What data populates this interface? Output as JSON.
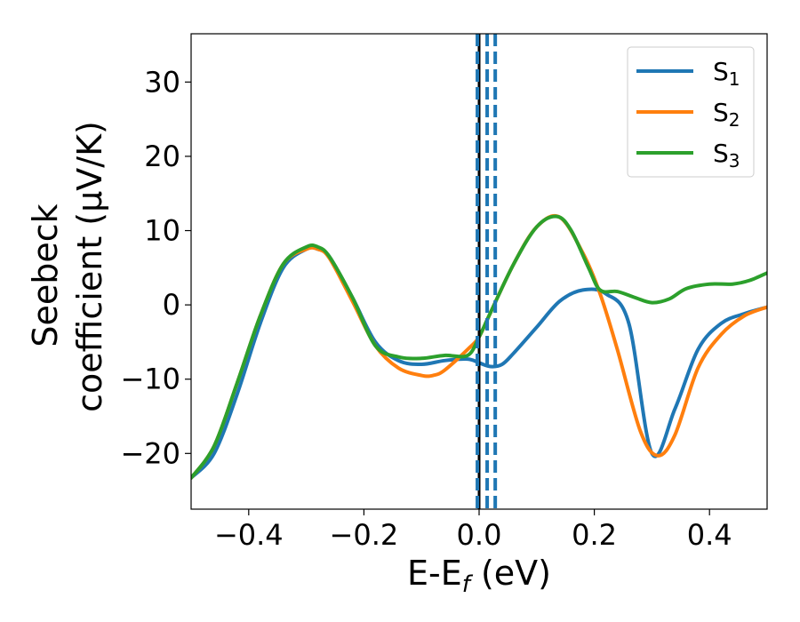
{
  "chart_data": {
    "type": "line",
    "title": "",
    "xlabel_main": "E-E",
    "xlabel_sub": "f",
    "xlabel_unit": " (eV)",
    "ylabel_line1": "Seebeck",
    "ylabel_line2": "coefficient  (μV/K)",
    "xlim": [
      -0.5,
      0.5
    ],
    "ylim": [
      -27.5,
      36.5
    ],
    "xticks": [
      -0.4,
      -0.2,
      0.0,
      0.2,
      0.4
    ],
    "xtick_labels": [
      "−0.4",
      "−0.2",
      "0.0",
      "0.2",
      "0.4"
    ],
    "yticks": [
      -20,
      -10,
      0,
      10,
      20,
      30
    ],
    "ytick_labels": [
      "−20",
      "−10",
      "0",
      "10",
      "20",
      "30"
    ],
    "grid": false,
    "legend_position": "top-right",
    "vertical_lines": [
      {
        "x": 0.0,
        "style": "solid",
        "color": "#000000"
      },
      {
        "x": -0.003,
        "style": "dashed",
        "color": "#1f77b4"
      },
      {
        "x": 0.014,
        "style": "dashed",
        "color": "#1f77b4"
      },
      {
        "x": 0.028,
        "style": "dashed",
        "color": "#1f77b4"
      }
    ],
    "series": [
      {
        "name": "S",
        "subscript": "1",
        "color": "#1f77b4",
        "x": [
          -0.5,
          -0.46,
          -0.42,
          -0.38,
          -0.34,
          -0.3,
          -0.28,
          -0.26,
          -0.22,
          -0.18,
          -0.14,
          -0.1,
          -0.06,
          -0.02,
          0.0,
          0.02,
          0.04,
          0.06,
          0.1,
          0.14,
          0.18,
          0.22,
          0.26,
          0.3,
          0.34,
          0.38,
          0.42,
          0.46,
          0.5
        ],
        "values": [
          -23.3,
          -20.0,
          -12.0,
          -2.5,
          5.0,
          7.5,
          7.5,
          6.5,
          1.0,
          -5.0,
          -7.5,
          -8.0,
          -7.5,
          -7.3,
          -7.8,
          -8.3,
          -8.0,
          -6.5,
          -3.0,
          0.5,
          2.0,
          1.5,
          -2.5,
          -20.0,
          -14.0,
          -6.0,
          -2.5,
          -1.2,
          -0.3
        ]
      },
      {
        "name": "S",
        "subscript": "2",
        "color": "#ff7f0e",
        "x": [
          -0.5,
          -0.46,
          -0.42,
          -0.38,
          -0.34,
          -0.3,
          -0.28,
          -0.26,
          -0.22,
          -0.18,
          -0.14,
          -0.1,
          -0.08,
          -0.06,
          -0.02,
          0.0,
          0.02,
          0.06,
          0.1,
          0.14,
          0.18,
          0.21,
          0.24,
          0.28,
          0.31,
          0.34,
          0.38,
          0.42,
          0.46,
          0.5
        ],
        "values": [
          -23.3,
          -19.0,
          -10.5,
          -1.5,
          5.5,
          7.5,
          7.5,
          6.3,
          0.5,
          -5.5,
          -8.5,
          -9.5,
          -9.5,
          -8.8,
          -6.0,
          -4.3,
          -1.0,
          5.5,
          10.5,
          11.8,
          7.0,
          1.5,
          -6.0,
          -17.0,
          -20.3,
          -17.5,
          -8.5,
          -4.0,
          -1.5,
          -0.3
        ]
      },
      {
        "name": "S",
        "subscript": "3",
        "color": "#2ca02c",
        "x": [
          -0.5,
          -0.46,
          -0.42,
          -0.38,
          -0.34,
          -0.3,
          -0.28,
          -0.26,
          -0.22,
          -0.18,
          -0.14,
          -0.1,
          -0.06,
          -0.02,
          0.0,
          0.02,
          0.06,
          0.1,
          0.135,
          0.16,
          0.19,
          0.21,
          0.24,
          0.27,
          0.3,
          0.33,
          0.36,
          0.4,
          0.44,
          0.47,
          0.5
        ],
        "values": [
          -23.3,
          -19.0,
          -10.5,
          -1.5,
          5.5,
          7.8,
          7.8,
          6.5,
          1.0,
          -5.5,
          -7.0,
          -7.2,
          -6.8,
          -6.8,
          -4.3,
          -1.0,
          5.5,
          10.5,
          11.9,
          10.0,
          5.0,
          2.0,
          1.8,
          1.0,
          0.3,
          0.8,
          2.2,
          2.8,
          2.8,
          3.3,
          4.3
        ]
      }
    ]
  }
}
